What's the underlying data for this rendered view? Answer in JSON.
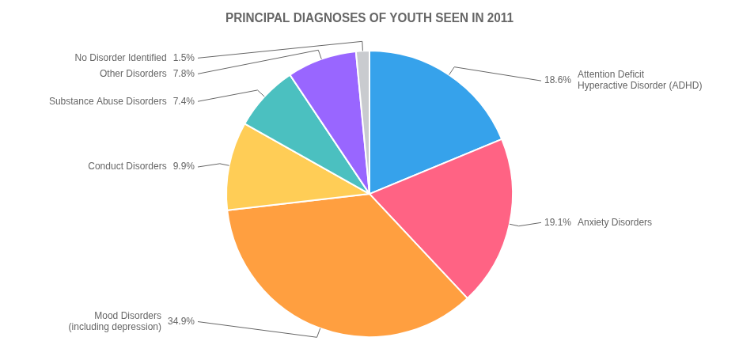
{
  "chart_data": {
    "type": "pie",
    "title": "PRINCIPAL DIAGNOSES OF YOUTH SEEN IN 2011",
    "categories": [
      "Attention Deficit\nHyperactive Disorder (ADHD)",
      "Anxiety Disorders",
      "Mood Disorders\n(including depression)",
      "Conduct Disorders",
      "Substance Abuse Disorders",
      "Other Disorders",
      "No Disorder Identified"
    ],
    "values": [
      18.6,
      19.1,
      34.9,
      9.9,
      7.4,
      7.8,
      1.5
    ],
    "value_labels": [
      "18.6%",
      "19.1%",
      "34.9%",
      "9.9%",
      "7.4%",
      "7.8%",
      "1.5%"
    ],
    "data_labels": true
  }
}
